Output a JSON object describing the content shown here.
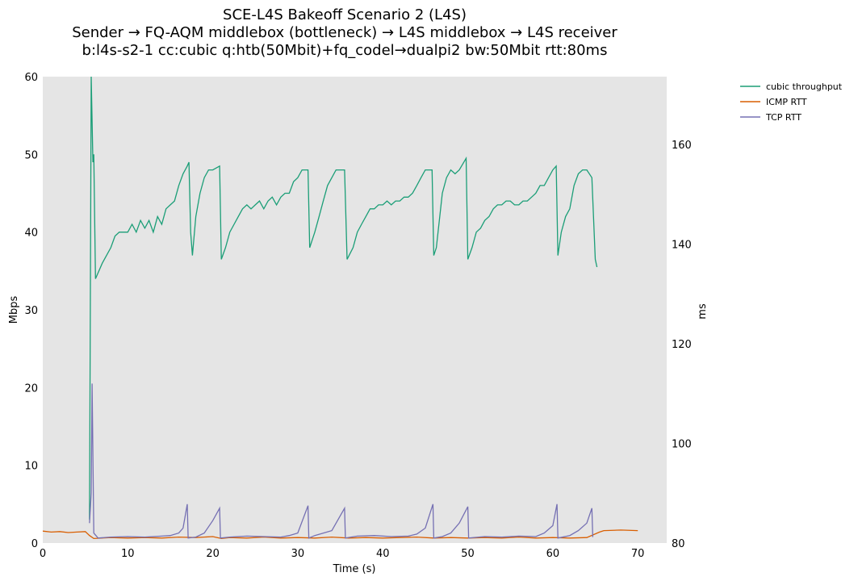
{
  "chart_data": {
    "type": "line",
    "title": [
      "SCE-L4S Bakeoff Scenario 2 (L4S)",
      "Sender → FQ-AQM middlebox (bottleneck) → L4S middlebox → L4S receiver",
      "b:l4s-s2-1 cc:cubic q:htb(50Mbit)+fq_codel→dualpi2 bw:50Mbit rtt:80ms"
    ],
    "xlabel": "Time (s)",
    "ylabel": "Mbps",
    "y2label": "ms",
    "xlim": [
      0,
      73.4
    ],
    "ylim": [
      0,
      60
    ],
    "y2lim": [
      80,
      173.6
    ],
    "xticks": [
      "0",
      "10",
      "20",
      "30",
      "40",
      "50",
      "60",
      "70"
    ],
    "yticks": [
      "0",
      "10",
      "20",
      "30",
      "40",
      "50",
      "60"
    ],
    "y2ticks": [
      "80",
      "100",
      "120",
      "140",
      "160"
    ],
    "grid": false,
    "legend_position": "outside-top-right",
    "series": [
      {
        "name": "cubic throughput",
        "axis": "left",
        "color": "#1b9e77",
        "x": [
          5.5,
          5.7,
          5.9,
          6.0,
          6.2,
          7,
          8,
          8.5,
          9,
          10,
          10.5,
          11,
          11.5,
          12,
          12.5,
          13,
          13.5,
          14,
          14.5,
          15,
          15.5,
          16,
          16.5,
          17,
          17.2,
          17.4,
          17.6,
          18,
          18.5,
          19,
          19.5,
          20,
          20.8,
          21,
          21.5,
          22,
          22.5,
          23,
          23.5,
          24,
          24.5,
          25,
          25.5,
          26,
          26.5,
          27,
          27.5,
          28,
          28.5,
          29,
          29.5,
          30,
          30.5,
          31,
          31.2,
          31.4,
          32,
          32.5,
          33,
          33.5,
          34,
          34.5,
          35,
          35.5,
          35.8,
          36.5,
          37,
          37.5,
          38,
          38.5,
          39,
          39.5,
          40,
          40.5,
          41,
          41.5,
          42,
          42.5,
          43,
          43.5,
          44,
          44.5,
          45,
          45.8,
          46,
          46.3,
          47,
          47.5,
          48,
          48.5,
          49,
          49.8,
          50,
          50.5,
          51,
          51.5,
          52,
          52.5,
          53,
          53.5,
          54,
          54.5,
          55,
          55.5,
          56,
          56.5,
          57,
          57.5,
          58,
          58.5,
          59,
          59.5,
          60,
          60.4,
          60.6,
          61,
          61.5,
          62,
          62.5,
          63,
          63.5,
          64,
          64.6,
          65,
          65.2
        ],
        "y": [
          3,
          60,
          49,
          50,
          34,
          36,
          38,
          39.5,
          40,
          40,
          41,
          40,
          41.5,
          40.5,
          41.5,
          40,
          42,
          41,
          43,
          43.5,
          44,
          46,
          47.5,
          48.5,
          49,
          40,
          37,
          42,
          45,
          47,
          48,
          48,
          48.5,
          36.5,
          38,
          40,
          41,
          42,
          43,
          43.5,
          43,
          43.5,
          44,
          43,
          44,
          44.5,
          43.5,
          44.5,
          45,
          45,
          46.5,
          47,
          48,
          48,
          48,
          38,
          40,
          42,
          44,
          46,
          47,
          48,
          48,
          48,
          36.5,
          38,
          40,
          41,
          42,
          43,
          43,
          43.5,
          43.5,
          44,
          43.5,
          44,
          44,
          44.5,
          44.5,
          45,
          46,
          47,
          48,
          48,
          37,
          38,
          45,
          47,
          48,
          47.5,
          48,
          49.5,
          36.5,
          38,
          40,
          40.5,
          41.5,
          42,
          43,
          43.5,
          43.5,
          44,
          44,
          43.5,
          43.5,
          44,
          44,
          44.5,
          45,
          46,
          46,
          47,
          48,
          48.5,
          37,
          40,
          42,
          43,
          46,
          47.5,
          48,
          48,
          47,
          36.5,
          35.5
        ]
      },
      {
        "name": "ICMP RTT",
        "axis": "right",
        "color": "#d95f02",
        "x": [
          0,
          1,
          2,
          3,
          4,
          5,
          5.5,
          6,
          8,
          10,
          12,
          14,
          16,
          18,
          20,
          21,
          22,
          24,
          26,
          28,
          30,
          32,
          34,
          36,
          38,
          40,
          42,
          44,
          46,
          48,
          50,
          52,
          54,
          56,
          58,
          60,
          62,
          64,
          65.5,
          66,
          68,
          70
        ],
        "y": [
          82.4,
          82.2,
          82.3,
          82.1,
          82.2,
          82.3,
          81.5,
          80.9,
          81.1,
          81.0,
          81.1,
          81.0,
          81.2,
          81.1,
          81.3,
          80.9,
          81.1,
          81.0,
          81.2,
          81.0,
          81.1,
          81.0,
          81.2,
          81.0,
          81.1,
          81.0,
          81.1,
          81.2,
          81.0,
          81.1,
          81.0,
          81.1,
          81.0,
          81.2,
          81.0,
          81.1,
          81.0,
          81.1,
          82.2,
          82.5,
          82.6,
          82.5
        ]
      },
      {
        "name": "TCP RTT",
        "axis": "right",
        "color": "#7570b3",
        "x": [
          5.5,
          5.7,
          5.8,
          6.0,
          6.5,
          8,
          10,
          12,
          14,
          15,
          16,
          16.5,
          17,
          17.1,
          18,
          19,
          20,
          20.8,
          20.9,
          22,
          24,
          26,
          28,
          29,
          30,
          31.2,
          31.3,
          32,
          34,
          35.5,
          35.6,
          37,
          39,
          41,
          43,
          44,
          45,
          45.9,
          46,
          47,
          48,
          49,
          50,
          50.1,
          52,
          54,
          56,
          58,
          59,
          60,
          60.5,
          60.6,
          62,
          63,
          64,
          64.6,
          64.7
        ],
        "y": [
          84,
          90,
          112,
          82,
          81,
          81.2,
          81.3,
          81.2,
          81.4,
          81.5,
          82,
          83,
          87.8,
          81,
          81.2,
          82,
          84.5,
          87,
          81,
          81.2,
          81.4,
          81.3,
          81.2,
          81.5,
          82,
          87.5,
          81,
          81.5,
          82.5,
          87,
          81,
          81.4,
          81.5,
          81.3,
          81.4,
          81.8,
          83,
          87.8,
          81,
          81.3,
          82,
          84,
          87.3,
          81,
          81.3,
          81.2,
          81.4,
          81.3,
          82,
          83.5,
          87.8,
          81,
          81.5,
          82.5,
          84,
          87,
          81.2
        ]
      }
    ]
  }
}
